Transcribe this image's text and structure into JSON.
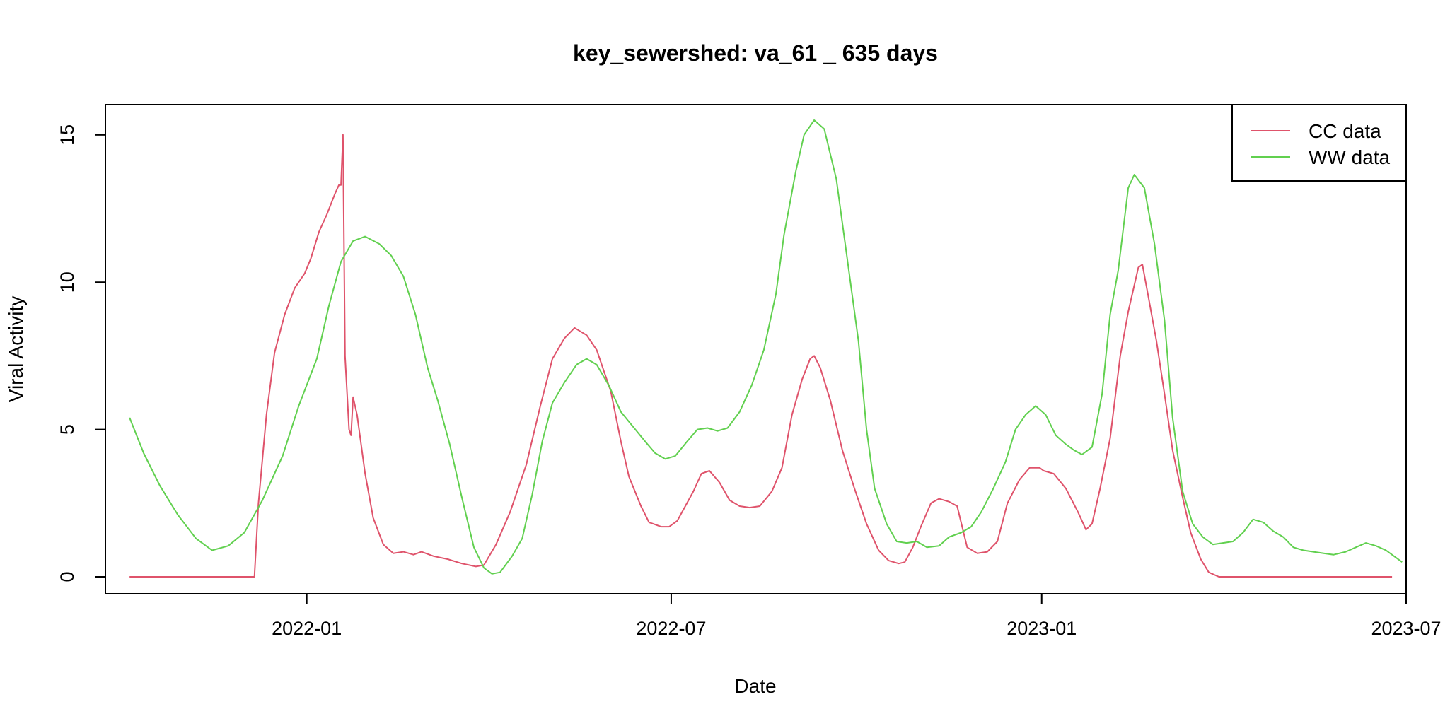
{
  "chart_data": {
    "type": "line",
    "title": "key_sewershed:  va_61 _ 635  days",
    "xlabel": "Date",
    "ylabel": "Viral Activity",
    "xlim": [
      "2021-09-23",
      "2023-07-01"
    ],
    "ylim": [
      0,
      15.5
    ],
    "x_ticks": [
      "2022-01",
      "2022-07",
      "2023-01",
      "2023-07"
    ],
    "y_ticks": [
      "0",
      "5",
      "10",
      "15"
    ],
    "grid": false,
    "legend_position": "top-right",
    "series": [
      {
        "name": "CC data",
        "color": "#DF536B",
        "points": [
          [
            "2021-10-05",
            0
          ],
          [
            "2021-11-15",
            0
          ],
          [
            "2021-12-06",
            0
          ],
          [
            "2021-12-08",
            2.5
          ],
          [
            "2021-12-12",
            5.5
          ],
          [
            "2021-12-16",
            7.6
          ],
          [
            "2021-12-21",
            8.9
          ],
          [
            "2021-12-26",
            9.8
          ],
          [
            "2021-12-31",
            10.3
          ],
          [
            "2022-01-03",
            10.8
          ],
          [
            "2022-01-07",
            11.7
          ],
          [
            "2022-01-11",
            12.3
          ],
          [
            "2022-01-15",
            13
          ],
          [
            "2022-01-17",
            13.3
          ],
          [
            "2022-01-18",
            13.3
          ],
          [
            "2022-01-19",
            15
          ],
          [
            "2022-01-20",
            7.5
          ],
          [
            "2022-01-22",
            5.0
          ],
          [
            "2022-01-23",
            4.8
          ],
          [
            "2022-01-24",
            6.1
          ],
          [
            "2022-01-26",
            5.5
          ],
          [
            "2022-01-30",
            3.5
          ],
          [
            "2022-02-03",
            2.0
          ],
          [
            "2022-02-08",
            1.1
          ],
          [
            "2022-02-13",
            0.8
          ],
          [
            "2022-02-18",
            0.85
          ],
          [
            "2022-02-23",
            0.75
          ],
          [
            "2022-02-27",
            0.85
          ],
          [
            "2022-03-05",
            0.7
          ],
          [
            "2022-03-12",
            0.6
          ],
          [
            "2022-03-19",
            0.45
          ],
          [
            "2022-03-26",
            0.35
          ],
          [
            "2022-03-30",
            0.4
          ],
          [
            "2022-04-05",
            1.1
          ],
          [
            "2022-04-12",
            2.2
          ],
          [
            "2022-04-20",
            3.8
          ],
          [
            "2022-04-27",
            5.8
          ],
          [
            "2022-05-03",
            7.4
          ],
          [
            "2022-05-09",
            8.1
          ],
          [
            "2022-05-14",
            8.45
          ],
          [
            "2022-05-20",
            8.2
          ],
          [
            "2022-05-25",
            7.7
          ],
          [
            "2022-06-01",
            6.3
          ],
          [
            "2022-06-06",
            4.6
          ],
          [
            "2022-06-10",
            3.4
          ],
          [
            "2022-06-16",
            2.4
          ],
          [
            "2022-06-20",
            1.85
          ],
          [
            "2022-06-26",
            1.7
          ],
          [
            "2022-06-30",
            1.7
          ],
          [
            "2022-07-04",
            1.9
          ],
          [
            "2022-07-08",
            2.4
          ],
          [
            "2022-07-12",
            2.9
          ],
          [
            "2022-07-16",
            3.5
          ],
          [
            "2022-07-20",
            3.6
          ],
          [
            "2022-07-25",
            3.2
          ],
          [
            "2022-07-30",
            2.6
          ],
          [
            "2022-08-04",
            2.4
          ],
          [
            "2022-08-09",
            2.35
          ],
          [
            "2022-08-14",
            2.4
          ],
          [
            "2022-08-20",
            2.9
          ],
          [
            "2022-08-25",
            3.7
          ],
          [
            "2022-08-30",
            5.5
          ],
          [
            "2022-09-04",
            6.7
          ],
          [
            "2022-09-08",
            7.4
          ],
          [
            "2022-09-10",
            7.5
          ],
          [
            "2022-09-13",
            7.1
          ],
          [
            "2022-09-18",
            6.0
          ],
          [
            "2022-09-24",
            4.3
          ],
          [
            "2022-09-30",
            3.0
          ],
          [
            "2022-10-06",
            1.8
          ],
          [
            "2022-10-12",
            0.9
          ],
          [
            "2022-10-17",
            0.55
          ],
          [
            "2022-10-22",
            0.45
          ],
          [
            "2022-10-25",
            0.5
          ],
          [
            "2022-10-29",
            1.0
          ],
          [
            "2022-11-02",
            1.7
          ],
          [
            "2022-11-07",
            2.5
          ],
          [
            "2022-11-11",
            2.65
          ],
          [
            "2022-11-16",
            2.55
          ],
          [
            "2022-11-20",
            2.4
          ],
          [
            "2022-11-25",
            1.0
          ],
          [
            "2022-11-30",
            0.8
          ],
          [
            "2022-12-05",
            0.85
          ],
          [
            "2022-12-10",
            1.2
          ],
          [
            "2022-12-15",
            2.5
          ],
          [
            "2022-12-21",
            3.3
          ],
          [
            "2022-12-26",
            3.7
          ],
          [
            "2022-12-31",
            3.7
          ],
          [
            "2023-01-02",
            3.6
          ],
          [
            "2023-01-07",
            3.5
          ],
          [
            "2023-01-13",
            3.0
          ],
          [
            "2023-01-19",
            2.2
          ],
          [
            "2023-01-23",
            1.6
          ],
          [
            "2023-01-26",
            1.8
          ],
          [
            "2023-01-30",
            3.0
          ],
          [
            "2023-02-04",
            4.7
          ],
          [
            "2023-02-09",
            7.5
          ],
          [
            "2023-02-13",
            9.0
          ],
          [
            "2023-02-18",
            10.5
          ],
          [
            "2023-02-20",
            10.6
          ],
          [
            "2023-02-23",
            9.5
          ],
          [
            "2023-02-27",
            8.0
          ],
          [
            "2023-03-03",
            6.2
          ],
          [
            "2023-03-07",
            4.3
          ],
          [
            "2023-03-12",
            2.7
          ],
          [
            "2023-03-16",
            1.5
          ],
          [
            "2023-03-21",
            0.6
          ],
          [
            "2023-03-25",
            0.15
          ],
          [
            "2023-03-30",
            0
          ],
          [
            "2023-04-30",
            0
          ],
          [
            "2023-06-24",
            0
          ]
        ]
      },
      {
        "name": "WW data",
        "color": "#61D04F",
        "points": [
          [
            "2021-10-05",
            5.4
          ],
          [
            "2021-10-12",
            4.2
          ],
          [
            "2021-10-20",
            3.1
          ],
          [
            "2021-10-29",
            2.1
          ],
          [
            "2021-11-07",
            1.3
          ],
          [
            "2021-11-15",
            0.9
          ],
          [
            "2021-11-23",
            1.05
          ],
          [
            "2021-12-01",
            1.5
          ],
          [
            "2021-12-10",
            2.6
          ],
          [
            "2021-12-20",
            4.1
          ],
          [
            "2021-12-28",
            5.8
          ],
          [
            "2022-01-06",
            7.4
          ],
          [
            "2022-01-12",
            9.2
          ],
          [
            "2022-01-18",
            10.7
          ],
          [
            "2022-01-24",
            11.4
          ],
          [
            "2022-01-30",
            11.55
          ],
          [
            "2022-02-06",
            11.3
          ],
          [
            "2022-02-12",
            10.9
          ],
          [
            "2022-02-18",
            10.2
          ],
          [
            "2022-02-24",
            8.9
          ],
          [
            "2022-03-02",
            7.1
          ],
          [
            "2022-03-07",
            6.0
          ],
          [
            "2022-03-13",
            4.5
          ],
          [
            "2022-03-19",
            2.7
          ],
          [
            "2022-03-25",
            1.0
          ],
          [
            "2022-03-30",
            0.3
          ],
          [
            "2022-04-03",
            0.1
          ],
          [
            "2022-04-07",
            0.15
          ],
          [
            "2022-04-13",
            0.7
          ],
          [
            "2022-04-18",
            1.3
          ],
          [
            "2022-04-23",
            2.8
          ],
          [
            "2022-04-28",
            4.6
          ],
          [
            "2022-05-03",
            5.9
          ],
          [
            "2022-05-09",
            6.6
          ],
          [
            "2022-05-15",
            7.2
          ],
          [
            "2022-05-20",
            7.4
          ],
          [
            "2022-05-25",
            7.2
          ],
          [
            "2022-05-31",
            6.5
          ],
          [
            "2022-06-06",
            5.6
          ],
          [
            "2022-06-12",
            5.1
          ],
          [
            "2022-06-18",
            4.6
          ],
          [
            "2022-06-23",
            4.2
          ],
          [
            "2022-06-28",
            4.0
          ],
          [
            "2022-07-03",
            4.1
          ],
          [
            "2022-07-09",
            4.6
          ],
          [
            "2022-07-14",
            5.0
          ],
          [
            "2022-07-19",
            5.05
          ],
          [
            "2022-07-24",
            4.95
          ],
          [
            "2022-07-29",
            5.05
          ],
          [
            "2022-08-04",
            5.6
          ],
          [
            "2022-08-10",
            6.5
          ],
          [
            "2022-08-16",
            7.7
          ],
          [
            "2022-08-22",
            9.6
          ],
          [
            "2022-08-26",
            11.6
          ],
          [
            "2022-09-01",
            13.8
          ],
          [
            "2022-09-05",
            15.0
          ],
          [
            "2022-09-10",
            15.5
          ],
          [
            "2022-09-15",
            15.2
          ],
          [
            "2022-09-21",
            13.5
          ],
          [
            "2022-09-27",
            10.5
          ],
          [
            "2022-10-02",
            8.0
          ],
          [
            "2022-10-06",
            5.0
          ],
          [
            "2022-10-10",
            3.0
          ],
          [
            "2022-10-16",
            1.8
          ],
          [
            "2022-10-21",
            1.2
          ],
          [
            "2022-10-26",
            1.15
          ],
          [
            "2022-10-31",
            1.2
          ],
          [
            "2022-11-05",
            1.0
          ],
          [
            "2022-11-11",
            1.05
          ],
          [
            "2022-11-16",
            1.35
          ],
          [
            "2022-11-22",
            1.5
          ],
          [
            "2022-11-27",
            1.7
          ],
          [
            "2022-12-02",
            2.2
          ],
          [
            "2022-12-08",
            3.0
          ],
          [
            "2022-12-14",
            3.9
          ],
          [
            "2022-12-19",
            5.0
          ],
          [
            "2022-12-24",
            5.5
          ],
          [
            "2022-12-29",
            5.8
          ],
          [
            "2023-01-03",
            5.5
          ],
          [
            "2023-01-08",
            4.8
          ],
          [
            "2023-01-13",
            4.5
          ],
          [
            "2023-01-17",
            4.3
          ],
          [
            "2023-01-21",
            4.15
          ],
          [
            "2023-01-26",
            4.4
          ],
          [
            "2023-01-31",
            6.2
          ],
          [
            "2023-02-04",
            8.9
          ],
          [
            "2023-02-08",
            10.4
          ],
          [
            "2023-02-13",
            13.2
          ],
          [
            "2023-02-16",
            13.65
          ],
          [
            "2023-02-21",
            13.2
          ],
          [
            "2023-02-26",
            11.3
          ],
          [
            "2023-03-03",
            8.7
          ],
          [
            "2023-03-07",
            5.4
          ],
          [
            "2023-03-12",
            2.9
          ],
          [
            "2023-03-17",
            1.8
          ],
          [
            "2023-03-22",
            1.35
          ],
          [
            "2023-03-27",
            1.1
          ],
          [
            "2023-04-01",
            1.15
          ],
          [
            "2023-04-06",
            1.2
          ],
          [
            "2023-04-11",
            1.5
          ],
          [
            "2023-04-16",
            1.95
          ],
          [
            "2023-04-21",
            1.85
          ],
          [
            "2023-04-26",
            1.55
          ],
          [
            "2023-05-01",
            1.35
          ],
          [
            "2023-05-06",
            1.0
          ],
          [
            "2023-05-11",
            0.9
          ],
          [
            "2023-05-16",
            0.85
          ],
          [
            "2023-05-21",
            0.8
          ],
          [
            "2023-05-26",
            0.75
          ],
          [
            "2023-06-01",
            0.85
          ],
          [
            "2023-06-06",
            1.0
          ],
          [
            "2023-06-11",
            1.15
          ],
          [
            "2023-06-16",
            1.05
          ],
          [
            "2023-06-21",
            0.9
          ],
          [
            "2023-06-26",
            0.65
          ],
          [
            "2023-06-29",
            0.5
          ]
        ]
      }
    ]
  }
}
